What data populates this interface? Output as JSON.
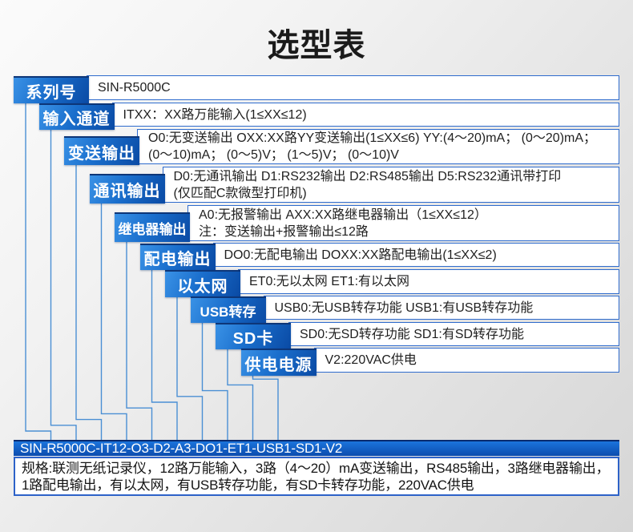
{
  "title": "选型表",
  "colors": {
    "label_blue_light": "#3a92e6",
    "label_blue_dark": "#0a4aa4",
    "box_border_blue": "#2e6bcd",
    "connector_blue": "#4a8fd4",
    "bar_blue_top": "#1b74dc",
    "bar_blue_bottom": "#0c4cae"
  },
  "rows": [
    {
      "label": "系列号",
      "lines": [
        "SIN-R5000C"
      ]
    },
    {
      "label": "输入通道",
      "lines": [
        "ITXX：XX路万能输入(1≤XX≤12)"
      ]
    },
    {
      "label": "变送输出",
      "lines": [
        "O0:无变送输出 OXX:XX路YY变送输出(1≤XX≤6) YY:(4～20)mA； (0～20)mA；",
        "(0～10)mA； (0～5)V； (1～5)V； (0～10)V"
      ]
    },
    {
      "label": "通讯输出",
      "lines": [
        "D0:无通讯输出 D1:RS232输出 D2:RS485输出 D5:RS232通讯带打印",
        "(仅匹配C款微型打印机)"
      ]
    },
    {
      "label": "继电器输出",
      "lines": [
        "A0:无报警输出 AXX:XX路继电器输出（1≤XX≤12）",
        "注：变送输出+报警输出≤12路"
      ]
    },
    {
      "label": "配电输出",
      "lines": [
        "DO0:无配电输出 DOXX:XX路配电输出(1≤XX≤2)"
      ]
    },
    {
      "label": "以太网",
      "lines": [
        "ET0:无以太网 ET1:有以太网"
      ]
    },
    {
      "label": "USB转存",
      "lines": [
        "USB0:无USB转存功能 USB1:有USB转存功能"
      ]
    },
    {
      "label": "SD卡",
      "lines": [
        "SD0:无SD转存功能 SD1:有SD转存功能"
      ]
    },
    {
      "label": "供电电源",
      "lines": [
        "V2:220VAC供电"
      ]
    }
  ],
  "model_code": "SIN-R5000C-IT12-O3-D2-A3-DO1-ET1-USB1-SD1-V2",
  "spec": "规格:联测无纸记录仪，12路万能输入，3路（4～20）mA变送输出，RS485输出，3路继电器输出，1路配电输出，有以太网，有USB转存功能，有SD卡转存功能，220VAC供电"
}
